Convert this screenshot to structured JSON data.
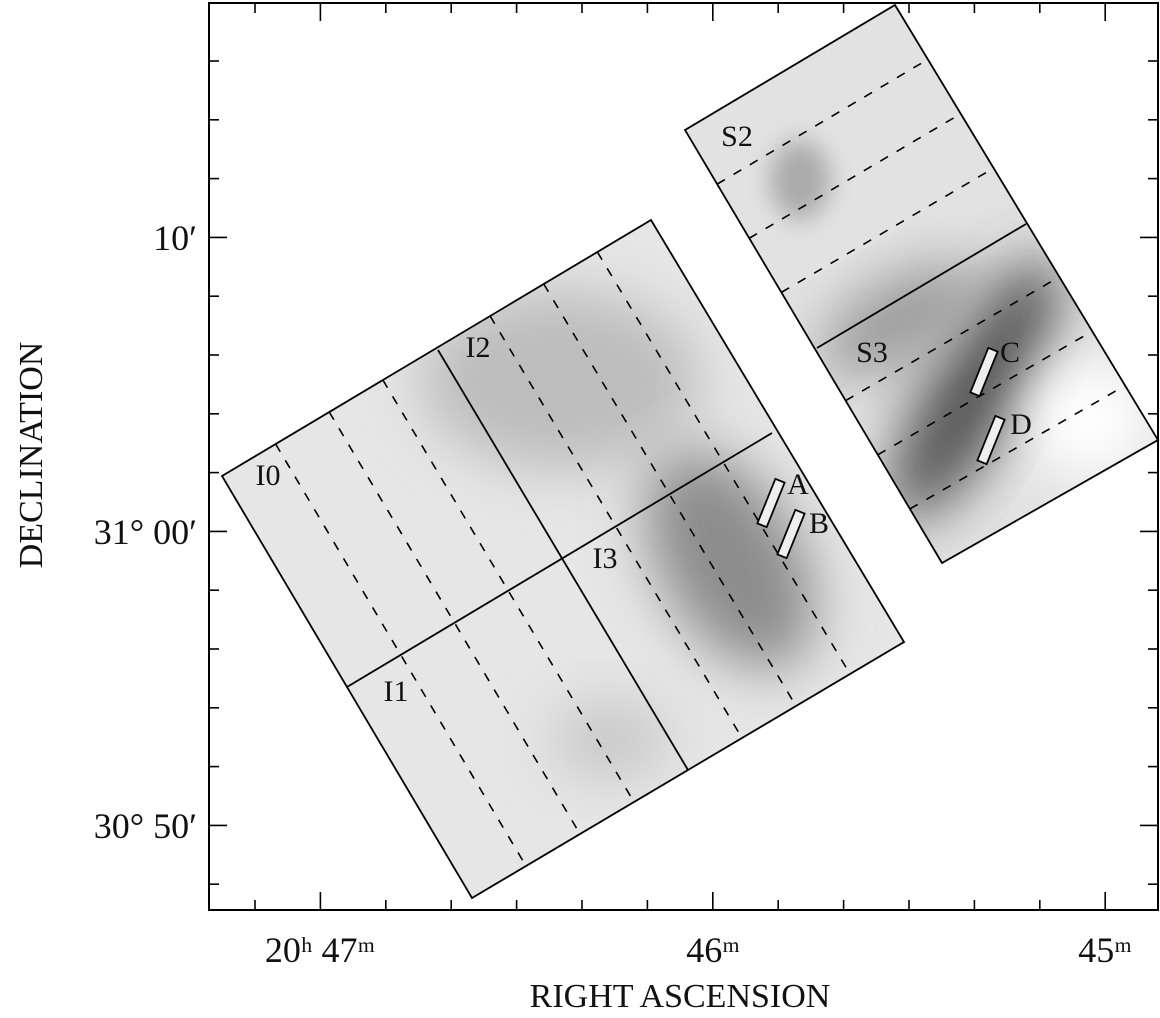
{
  "axes": {
    "x_label": "RIGHT ASCENSION",
    "y_label": "DECLINATION",
    "x_ticks": [
      "20ʰ 47ᵐ",
      "46ᵐ",
      "45ᵐ"
    ],
    "y_ticks": [
      "10′",
      "31° 00′",
      "30° 50′"
    ]
  },
  "chips": [
    {
      "label": "I0"
    },
    {
      "label": "I1"
    },
    {
      "label": "I2"
    },
    {
      "label": "I3"
    },
    {
      "label": "S2"
    },
    {
      "label": "S3"
    }
  ],
  "regions": [
    {
      "label": "A"
    },
    {
      "label": "B"
    },
    {
      "label": "C"
    },
    {
      "label": "D"
    }
  ]
}
